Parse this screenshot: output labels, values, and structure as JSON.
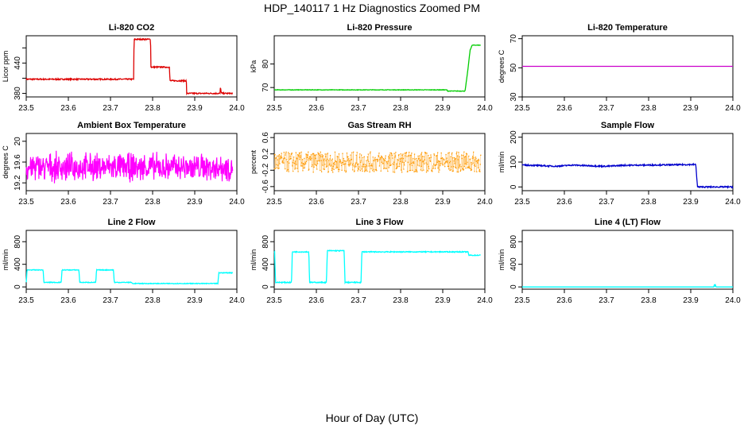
{
  "figure": {
    "title": "HDP_140117  1 Hz Diagnostics Zoomed PM",
    "xlabel": "Hour of Day (UTC)"
  },
  "chart_data": [
    {
      "type": "line",
      "title": "Li-820 CO2",
      "ylabel": "Licor ppm",
      "color": "#dd0000",
      "xlim": [
        23.5,
        24.0
      ],
      "ylim": [
        373,
        494
      ],
      "xticks": [
        "23.5",
        "23.6",
        "23.7",
        "23.8",
        "23.9",
        "24.0"
      ],
      "yticks": [
        380,
        440
      ],
      "yticks_mid": [
        410,
        470
      ],
      "noise": 1.2,
      "series": [
        {
          "name": "CO2",
          "x": [
            23.5,
            23.755,
            23.756,
            23.795,
            23.796,
            23.84,
            23.841,
            23.88,
            23.881,
            23.96,
            23.961,
            23.963,
            23.964,
            23.99
          ],
          "y": [
            408,
            408,
            487,
            487,
            432,
            432,
            405,
            405,
            380,
            380,
            392,
            382,
            380,
            380
          ]
        }
      ]
    },
    {
      "type": "line",
      "title": "Li-820 Pressure",
      "ylabel": "kPa",
      "color": "#00cc00",
      "xlim": [
        23.5,
        24.0
      ],
      "ylim": [
        66,
        92
      ],
      "xticks": [
        "23.5",
        "23.6",
        "23.7",
        "23.8",
        "23.9",
        "24.0"
      ],
      "yticks": [
        70,
        80
      ],
      "yticks_mid": [],
      "noise": 0.1,
      "series": [
        {
          "name": "Pressure",
          "x": [
            23.5,
            23.91,
            23.911,
            23.953,
            23.96,
            23.965,
            23.97,
            23.99
          ],
          "y": [
            69,
            69,
            68.5,
            68.5,
            78,
            86,
            88,
            88
          ]
        }
      ]
    },
    {
      "type": "line",
      "title": "Li-820 Temperature",
      "ylabel": "degrees C",
      "color": "#cc00cc",
      "xlim": [
        23.5,
        24.0
      ],
      "ylim": [
        30,
        72
      ],
      "xticks": [
        "23.5",
        "23.6",
        "23.7",
        "23.8",
        "23.9",
        "24.0"
      ],
      "yticks": [
        30,
        50,
        70
      ],
      "yticks_mid": [],
      "noise": 0,
      "series": [
        {
          "name": "Temperature",
          "x": [
            23.5,
            24.0
          ],
          "y": [
            51,
            51
          ]
        }
      ]
    },
    {
      "type": "line",
      "title": "Ambient Box Temperature",
      "ylabel": "degrees C",
      "color": "#ff00ff",
      "xlim": [
        23.5,
        24.0
      ],
      "ylim": [
        19.05,
        20.15
      ],
      "xticks": [
        "23.5",
        "23.6",
        "23.7",
        "23.8",
        "23.9",
        "24.0"
      ],
      "yticks": [
        19.2,
        19.6,
        20.0
      ],
      "yticks_mid": [],
      "noise": 0.2,
      "series": [
        {
          "name": "Box Temp",
          "x": [
            23.5,
            23.99
          ],
          "y": [
            19.5,
            19.5
          ]
        }
      ]
    },
    {
      "type": "scatter",
      "title": "Gas Stream RH",
      "ylabel": "percent",
      "color": "#ff9900",
      "xlim": [
        23.5,
        24.0
      ],
      "ylim": [
        -0.7,
        0.7
      ],
      "xticks": [
        "23.5",
        "23.6",
        "23.7",
        "23.8",
        "23.9",
        "24.0"
      ],
      "yticks": [
        -0.6,
        -0.2,
        0.2,
        0.6
      ],
      "yticks_mid": [],
      "noise": 0.25,
      "series": [
        {
          "name": "RH",
          "x": [
            23.5,
            23.99
          ],
          "y": [
            0,
            0
          ]
        }
      ]
    },
    {
      "type": "line",
      "title": "Sample Flow",
      "ylabel": "ml/min",
      "color": "#0000cc",
      "xlim": [
        23.5,
        24.0
      ],
      "ylim": [
        -15,
        215
      ],
      "xticks": [
        "23.5",
        "23.6",
        "23.7",
        "23.8",
        "23.9",
        "24.0"
      ],
      "yticks": [
        0,
        100,
        200
      ],
      "yticks_mid": [],
      "noise": 2.5,
      "series": [
        {
          "name": "Sample Flow",
          "x": [
            23.5,
            23.54,
            23.58,
            23.62,
            23.66,
            23.7,
            23.74,
            23.8,
            23.86,
            23.9,
            23.912,
            23.916,
            24.0
          ],
          "y": [
            88,
            86,
            83,
            88,
            85,
            83,
            87,
            88,
            89,
            90,
            90,
            0,
            0
          ]
        }
      ]
    },
    {
      "type": "line",
      "title": "Line 2 Flow",
      "ylabel": "ml/min",
      "color": "#00ffff",
      "xlim": [
        23.5,
        24.0
      ],
      "ylim": [
        -40,
        1000
      ],
      "xticks": [
        "23.5",
        "23.6",
        "23.7",
        "23.8",
        "23.9",
        "24.0"
      ],
      "yticks": [
        0,
        400,
        800
      ],
      "yticks_mid": [],
      "noise": 6,
      "series": [
        {
          "name": "Line 2",
          "x": [
            23.5,
            23.502,
            23.54,
            23.542,
            23.583,
            23.585,
            23.625,
            23.627,
            23.665,
            23.667,
            23.707,
            23.709,
            23.75,
            23.752,
            23.955,
            23.957,
            23.99
          ],
          "y": [
            80,
            300,
            300,
            80,
            80,
            300,
            300,
            80,
            80,
            300,
            300,
            80,
            80,
            60,
            60,
            250,
            250
          ]
        }
      ]
    },
    {
      "type": "line",
      "title": "Line 3 Flow",
      "ylabel": "ml/min",
      "color": "#00ffff",
      "xlim": [
        23.5,
        24.0
      ],
      "ylim": [
        -40,
        1000
      ],
      "xticks": [
        "23.5",
        "23.6",
        "23.7",
        "23.8",
        "23.9",
        "24.0"
      ],
      "yticks": [
        0,
        400,
        800
      ],
      "yticks_mid": [],
      "noise": 8,
      "series": [
        {
          "name": "Line 3",
          "x": [
            23.5,
            23.501,
            23.503,
            23.541,
            23.543,
            23.582,
            23.584,
            23.624,
            23.626,
            23.666,
            23.668,
            23.706,
            23.708,
            23.96,
            23.962,
            23.99
          ],
          "y": [
            620,
            620,
            80,
            80,
            620,
            620,
            80,
            80,
            640,
            640,
            80,
            80,
            620,
            620,
            560,
            560
          ]
        }
      ]
    },
    {
      "type": "line",
      "title": "Line 4 (LT) Flow",
      "ylabel": "ml/min",
      "color": "#00ffff",
      "xlim": [
        23.5,
        24.0
      ],
      "ylim": [
        -40,
        1000
      ],
      "xticks": [
        "23.5",
        "23.6",
        "23.7",
        "23.8",
        "23.9",
        "24.0"
      ],
      "yticks": [
        0,
        400,
        800
      ],
      "yticks_mid": [],
      "noise": 0,
      "series": [
        {
          "name": "Line 4",
          "x": [
            23.5,
            23.955,
            23.956,
            23.957,
            23.958,
            23.96,
            23.961,
            24.0
          ],
          "y": [
            0,
            0,
            60,
            0,
            50,
            0,
            0,
            0
          ]
        }
      ]
    }
  ]
}
